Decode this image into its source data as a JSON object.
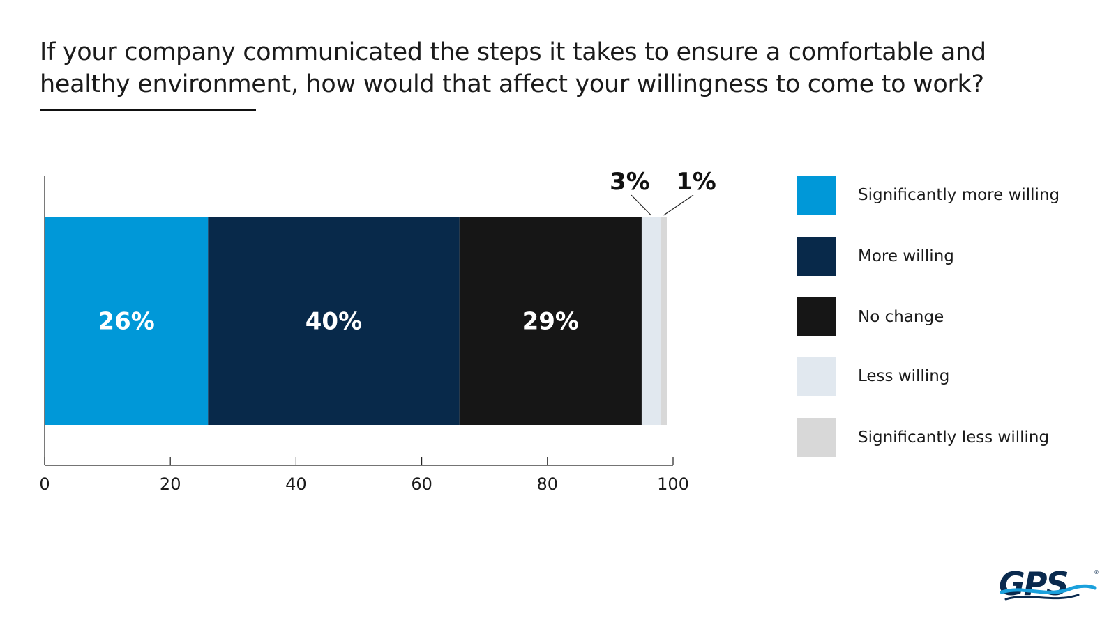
{
  "title_line1": "If your company communicated the steps it takes to ensure a comfortable and",
  "title_line2": "healthy environment, how would that affect your willingness to come to work?",
  "logo_text": "GPS",
  "chart_data": {
    "type": "bar",
    "orientation": "horizontal",
    "stacked": true,
    "xlim": [
      0,
      100
    ],
    "x_ticks": [
      0,
      20,
      40,
      60,
      80,
      100
    ],
    "grid": false,
    "legend_position": "right",
    "series": [
      {
        "name": "Significantly more willing",
        "value": 26,
        "label": "26%",
        "color": "#0098d8"
      },
      {
        "name": "More willing",
        "value": 40,
        "label": "40%",
        "color": "#08294a"
      },
      {
        "name": "No change",
        "value": 29,
        "label": "29%",
        "color": "#161616"
      },
      {
        "name": "Less willing",
        "value": 3,
        "label": "3%",
        "color": "#e1e8ef"
      },
      {
        "name": "Significantly less willing",
        "value": 1,
        "label": "1%",
        "color": "#d8d8d8"
      }
    ]
  }
}
